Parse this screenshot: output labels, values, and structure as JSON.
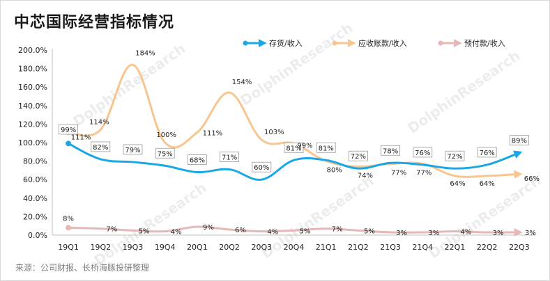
{
  "title": "中芯国际经营指标情况",
  "source": "来源：公司财报、长桥海豚投研整理",
  "watermark": "DolphinResearch",
  "chart_data": {
    "type": "line",
    "categories": [
      "19Q1",
      "19Q2",
      "19Q3",
      "19Q4",
      "20Q1",
      "20Q2",
      "20Q3",
      "20Q4",
      "21Q1",
      "21Q2",
      "21Q3",
      "21Q4",
      "22Q1",
      "22Q2",
      "22Q3"
    ],
    "ylim": [
      0,
      200
    ],
    "yticks": [
      "0.0%",
      "20.0%",
      "40.0%",
      "60.0%",
      "80.0%",
      "100.0%",
      "120.0%",
      "140.0%",
      "160.0%",
      "180.0%",
      "200.0%"
    ],
    "legend_position": "top-right",
    "series": [
      {
        "name": "存货/收入",
        "color": "#1aa7e6",
        "values": [
          99,
          82,
          79,
          75,
          68,
          71,
          60,
          81,
          81,
          72,
          78,
          76,
          72,
          76,
          89
        ],
        "labels": [
          "99%",
          "82%",
          "79%",
          "75%",
          "68%",
          "71%",
          "60%",
          "81%",
          "81%",
          "72%",
          "78%",
          "76%",
          "72%",
          "76%",
          "89%"
        ]
      },
      {
        "name": "应收账款/收入",
        "color": "#f8c58f",
        "values": [
          111,
          114,
          184,
          100,
          111,
          154,
          103,
          99,
          80,
          74,
          77,
          77,
          64,
          64,
          66
        ],
        "labels": [
          "111%",
          "114%",
          "184%",
          "100%",
          "111%",
          "154%",
          "103%",
          "99%",
          "80%",
          "74%",
          "77%",
          "77%",
          "64%",
          "64%",
          "66%"
        ]
      },
      {
        "name": "预付款/收入",
        "color": "#e6b7b7",
        "values": [
          8,
          7,
          5,
          4,
          9,
          6,
          4,
          5,
          7,
          5,
          3,
          3,
          4,
          3,
          3
        ],
        "labels": [
          "8%",
          "7%",
          "5%",
          "4%",
          "9%",
          "6%",
          "4%",
          "5%",
          "7%",
          "5%",
          "3%",
          "3%",
          "4%",
          "3%",
          "3%"
        ]
      }
    ]
  }
}
